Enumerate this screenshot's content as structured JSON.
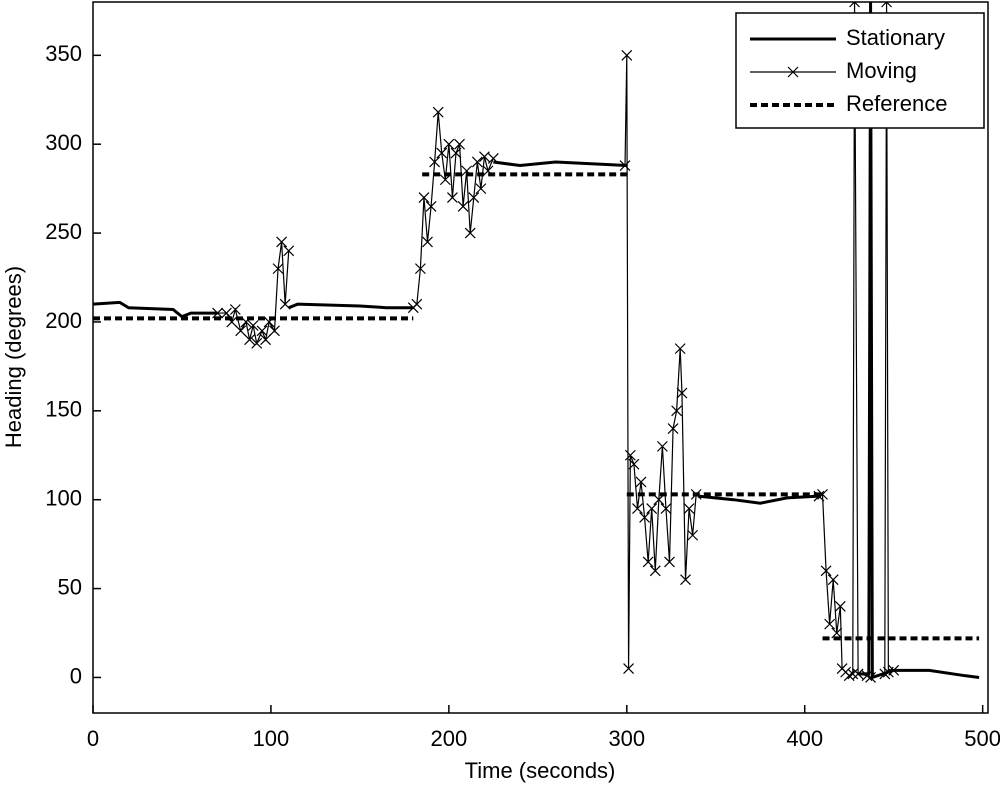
{
  "chart_data": {
    "type": "line",
    "xlabel": "Time (seconds)",
    "ylabel": "Heading (degrees)",
    "xlim": [
      0,
      503
    ],
    "ylim": [
      -20,
      380
    ],
    "xticks": [
      0,
      100,
      200,
      300,
      400,
      500
    ],
    "yticks": [
      0,
      50,
      100,
      150,
      200,
      250,
      300,
      350
    ],
    "legend": "upper right",
    "series": [
      {
        "name": "Stationary",
        "color": "#000000",
        "style": "solid",
        "x": [
          0,
          15,
          20,
          45,
          50,
          55,
          65,
          70,
          null,
          110,
          115,
          150,
          165,
          180,
          null,
          225,
          240,
          260,
          280,
          300,
          null,
          340,
          360,
          375,
          390,
          408,
          null,
          430,
          436,
          437,
          438,
          450,
          470,
          490,
          498
        ],
        "values": [
          210,
          211,
          208,
          207,
          203,
          205,
          205,
          205,
          null,
          208,
          210,
          209,
          208,
          208,
          null,
          290,
          288,
          290,
          289,
          288,
          null,
          102,
          100,
          98,
          101,
          102,
          null,
          2,
          2,
          380,
          0,
          4,
          4,
          1,
          0
        ]
      },
      {
        "name": "Moving",
        "color": "#000000",
        "style": "marker",
        "x": [
          70,
          75,
          78,
          80,
          83,
          86,
          88,
          90,
          92,
          95,
          97,
          99,
          102,
          104,
          106,
          108,
          110,
          null,
          180,
          182,
          184,
          186,
          188,
          190,
          192,
          194,
          196,
          198,
          200,
          202,
          204,
          206,
          208,
          210,
          212,
          214,
          216,
          218,
          220,
          222,
          225,
          null,
          299,
          300,
          301,
          302,
          304,
          306,
          308,
          310,
          312,
          314,
          316,
          318,
          320,
          322,
          324,
          326,
          328,
          330,
          331,
          333,
          335,
          337,
          339,
          null,
          408,
          410,
          412,
          414,
          416,
          418,
          420,
          421,
          423,
          425,
          427,
          428,
          430,
          435,
          437,
          445,
          446,
          447,
          450
        ],
        "values": [
          205,
          205,
          200,
          207,
          195,
          200,
          190,
          198,
          188,
          195,
          190,
          200,
          195,
          230,
          245,
          210,
          240,
          null,
          208,
          210,
          230,
          270,
          245,
          265,
          290,
          318,
          295,
          280,
          300,
          270,
          295,
          300,
          265,
          285,
          250,
          270,
          290,
          275,
          293,
          285,
          292,
          null,
          288,
          350,
          5,
          125,
          120,
          95,
          110,
          90,
          65,
          95,
          60,
          100,
          130,
          95,
          65,
          140,
          150,
          185,
          160,
          55,
          95,
          80,
          103,
          null,
          102,
          103,
          60,
          30,
          55,
          25,
          40,
          5,
          3,
          1,
          2,
          380,
          2,
          1,
          0,
          2,
          380,
          3,
          4
        ]
      },
      {
        "name": "Reference",
        "color": "#000000",
        "style": "dashed",
        "x": [
          0,
          180,
          null,
          185,
          300,
          null,
          300,
          410,
          null,
          410,
          498
        ],
        "values": [
          202,
          202,
          null,
          283,
          283,
          null,
          103,
          103,
          null,
          22,
          22
        ]
      }
    ]
  }
}
